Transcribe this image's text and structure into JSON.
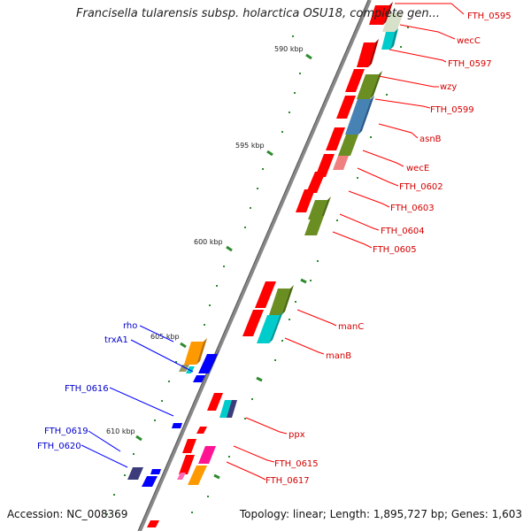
{
  "header": {
    "title": "Francisella tularensis subsp. holarctica OSU18, complete gen..."
  },
  "footer": {
    "accession": "Accession: NC_008369",
    "topology": "Topology: linear; Length: 1,895,727 bp; Genes: 1,603"
  },
  "colors": {
    "backbone": "#888888",
    "tick": "#2e8b2e",
    "red": "#ff0000",
    "olive": "#6b8e23",
    "steel": "#4682b4",
    "cyan": "#00cccc",
    "orange": "#ff9900",
    "magenta": "#ff1493",
    "navy": "#3c3c7a",
    "blue": "#0000ff",
    "label_red": "#d40000",
    "label_blue": "#0000cc"
  },
  "kbp_labels": [
    "590 kbp",
    "595 kbp",
    "600 kbp",
    "605 kbp",
    "610 kbp"
  ],
  "right_labels": [
    "FTH_0595",
    "wecC",
    "FTH_0597",
    "wzy",
    "FTH_0599",
    "asnB",
    "wecE",
    "FTH_0602",
    "FTH_0603",
    "FTH_0604",
    "FTH_0605",
    "manC",
    "manB",
    "ppx",
    "FTH_0615",
    "FTH_0617"
  ],
  "left_labels": [
    "rho",
    "trxA1",
    "FTH_0616",
    "FTH_0619",
    "FTH_0620"
  ]
}
